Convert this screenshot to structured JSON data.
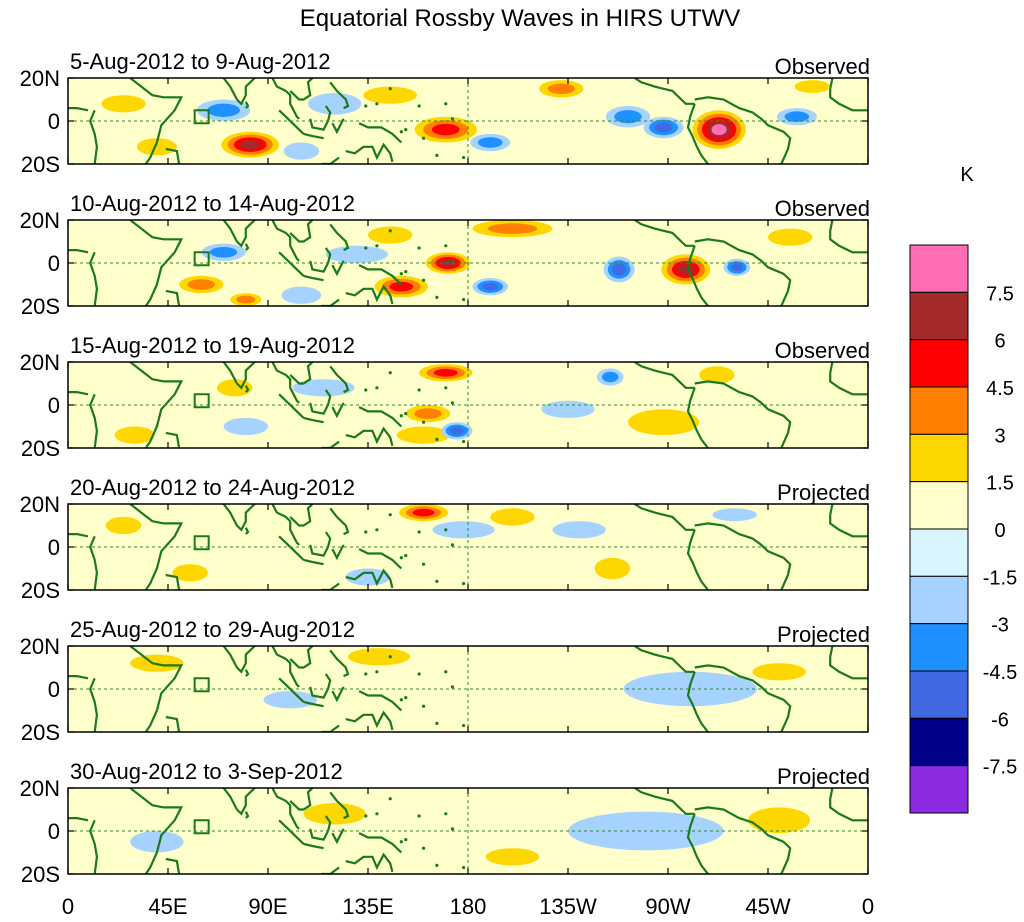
{
  "chart_data": {
    "type": "heatmap",
    "title": "Equatorial Rossby Waves in HIRS UTWV",
    "units": "K",
    "x_tick_labels": [
      "0",
      "45E",
      "90E",
      "135E",
      "180",
      "135W",
      "90W",
      "45W",
      "0"
    ],
    "y_tick_labels": [
      "20N",
      "0",
      "20S"
    ],
    "xlim": [
      0,
      360
    ],
    "ylim": [
      -20,
      20
    ],
    "colorbar": {
      "labels": [
        "7.5",
        "6",
        "4.5",
        "3",
        "1.5",
        "0",
        "-1.5",
        "-3",
        "-4.5",
        "-6",
        "-7.5"
      ],
      "colors": [
        "#ff6eb4",
        "#a52a2a",
        "#ff0000",
        "#ff7f00",
        "#ffd700",
        "#ffffcc",
        "#d9f5ff",
        "#a6d2ff",
        "#1e90ff",
        "#4169e1",
        "#00008b",
        "#8a2be2"
      ]
    },
    "panels": [
      {
        "period": "5-Aug-2012 to 9-Aug-2012",
        "status": "Observed",
        "anomalies": [
          {
            "lon": 82,
            "lat": -11,
            "value": 6,
            "rlon": 13,
            "rlat": 6
          },
          {
            "lon": 170,
            "lat": -4,
            "value": 4.5,
            "rlon": 14,
            "rlat": 6
          },
          {
            "lon": 293,
            "lat": -4,
            "value": 7.5,
            "rlon": 12,
            "rlat": 9
          },
          {
            "lon": 222,
            "lat": 15,
            "value": 3,
            "rlon": 10,
            "rlat": 4
          },
          {
            "lon": 335,
            "lat": 16,
            "value": 1.5,
            "rlon": 8,
            "rlat": 3
          },
          {
            "lon": 70,
            "lat": 5,
            "value": -3,
            "rlon": 12,
            "rlat": 5
          },
          {
            "lon": 268,
            "lat": -3,
            "value": -4.5,
            "rlon": 9,
            "rlat": 5
          },
          {
            "lon": 252,
            "lat": 2,
            "value": -3,
            "rlon": 10,
            "rlat": 5
          },
          {
            "lon": 120,
            "lat": 8,
            "value": -1.5,
            "rlon": 12,
            "rlat": 5
          },
          {
            "lon": 190,
            "lat": -10,
            "value": -3,
            "rlon": 9,
            "rlat": 4
          },
          {
            "lon": 328,
            "lat": 2,
            "value": -3,
            "rlon": 9,
            "rlat": 4
          },
          {
            "lon": 25,
            "lat": 8,
            "value": 1.5,
            "rlon": 10,
            "rlat": 4
          },
          {
            "lon": 40,
            "lat": -12,
            "value": 1.5,
            "rlon": 9,
            "rlat": 4
          },
          {
            "lon": 145,
            "lat": 12,
            "value": 1.5,
            "rlon": 12,
            "rlat": 4
          },
          {
            "lon": 105,
            "lat": -14,
            "value": -1.5,
            "rlon": 8,
            "rlat": 4
          }
        ]
      },
      {
        "period": "10-Aug-2012 to 14-Aug-2012",
        "status": "Observed",
        "anomalies": [
          {
            "lon": 171,
            "lat": 0,
            "value": 6,
            "rlon": 10,
            "rlat": 5
          },
          {
            "lon": 150,
            "lat": -11,
            "value": 4.5,
            "rlon": 12,
            "rlat": 5
          },
          {
            "lon": 278,
            "lat": -3,
            "value": 6,
            "rlon": 11,
            "rlat": 7
          },
          {
            "lon": 200,
            "lat": 16,
            "value": 3,
            "rlon": 18,
            "rlat": 4
          },
          {
            "lon": 60,
            "lat": -10,
            "value": 3,
            "rlon": 10,
            "rlat": 4
          },
          {
            "lon": 80,
            "lat": -17,
            "value": 3,
            "rlon": 7,
            "rlat": 3
          },
          {
            "lon": 190,
            "lat": -11,
            "value": -4.5,
            "rlon": 8,
            "rlat": 4
          },
          {
            "lon": 248,
            "lat": -3,
            "value": -4.5,
            "rlon": 7,
            "rlat": 6
          },
          {
            "lon": 301,
            "lat": -2,
            "value": -4.5,
            "rlon": 6,
            "rlat": 4
          },
          {
            "lon": 130,
            "lat": 4,
            "value": -1.5,
            "rlon": 14,
            "rlat": 4
          },
          {
            "lon": 70,
            "lat": 5,
            "value": -3,
            "rlon": 10,
            "rlat": 4
          },
          {
            "lon": 145,
            "lat": 13,
            "value": 1.5,
            "rlon": 10,
            "rlat": 4
          },
          {
            "lon": 325,
            "lat": 12,
            "value": 1.5,
            "rlon": 10,
            "rlat": 4
          },
          {
            "lon": 105,
            "lat": -15,
            "value": -1.5,
            "rlon": 9,
            "rlat": 4
          }
        ]
      },
      {
        "period": "15-Aug-2012 to 19-Aug-2012",
        "status": "Observed",
        "anomalies": [
          {
            "lon": 170,
            "lat": 15,
            "value": 4.5,
            "rlon": 12,
            "rlat": 4
          },
          {
            "lon": 162,
            "lat": -4,
            "value": 3,
            "rlon": 10,
            "rlat": 4
          },
          {
            "lon": 175,
            "lat": -12,
            "value": -4.5,
            "rlon": 7,
            "rlat": 4
          },
          {
            "lon": 244,
            "lat": 13,
            "value": -3,
            "rlon": 6,
            "rlat": 4
          },
          {
            "lon": 268,
            "lat": -8,
            "value": 1.5,
            "rlon": 16,
            "rlat": 6
          },
          {
            "lon": 292,
            "lat": 14,
            "value": 1.5,
            "rlon": 8,
            "rlat": 4
          },
          {
            "lon": 75,
            "lat": 8,
            "value": 1.5,
            "rlon": 8,
            "rlat": 4
          },
          {
            "lon": 160,
            "lat": -14,
            "value": 1.5,
            "rlon": 12,
            "rlat": 4
          },
          {
            "lon": 115,
            "lat": 8,
            "value": -1.5,
            "rlon": 14,
            "rlat": 4
          },
          {
            "lon": 80,
            "lat": -10,
            "value": -1.5,
            "rlon": 10,
            "rlat": 4
          },
          {
            "lon": 225,
            "lat": -2,
            "value": -1.5,
            "rlon": 12,
            "rlat": 4
          },
          {
            "lon": 30,
            "lat": -14,
            "value": 1.5,
            "rlon": 9,
            "rlat": 4
          }
        ]
      },
      {
        "period": "20-Aug-2012 to 24-Aug-2012",
        "status": "Projected",
        "anomalies": [
          {
            "lon": 160,
            "lat": 16,
            "value": 4.5,
            "rlon": 11,
            "rlat": 4
          },
          {
            "lon": 200,
            "lat": 14,
            "value": 1.5,
            "rlon": 10,
            "rlat": 4
          },
          {
            "lon": 178,
            "lat": 8,
            "value": -1.5,
            "rlon": 14,
            "rlat": 4
          },
          {
            "lon": 245,
            "lat": -10,
            "value": 1.5,
            "rlon": 8,
            "rlat": 5
          },
          {
            "lon": 135,
            "lat": -14,
            "value": -1.5,
            "rlon": 10,
            "rlat": 4
          },
          {
            "lon": 230,
            "lat": 8,
            "value": -1.5,
            "rlon": 12,
            "rlat": 4
          },
          {
            "lon": 55,
            "lat": -12,
            "value": 1.5,
            "rlon": 8,
            "rlat": 4
          },
          {
            "lon": 25,
            "lat": 10,
            "value": 1.5,
            "rlon": 8,
            "rlat": 4
          },
          {
            "lon": 300,
            "lat": 15,
            "value": -1.5,
            "rlon": 10,
            "rlat": 3
          }
        ]
      },
      {
        "period": "25-Aug-2012 to 29-Aug-2012",
        "status": "Projected",
        "anomalies": [
          {
            "lon": 140,
            "lat": 15,
            "value": 1.5,
            "rlon": 14,
            "rlat": 4
          },
          {
            "lon": 100,
            "lat": -5,
            "value": -1.5,
            "rlon": 12,
            "rlat": 4
          },
          {
            "lon": 280,
            "lat": 0,
            "value": -1.5,
            "rlon": 30,
            "rlat": 8
          },
          {
            "lon": 320,
            "lat": 8,
            "value": 1.5,
            "rlon": 12,
            "rlat": 4
          },
          {
            "lon": 40,
            "lat": 12,
            "value": 1.5,
            "rlon": 12,
            "rlat": 4
          }
        ]
      },
      {
        "period": "30-Aug-2012 to 3-Sep-2012",
        "status": "Projected",
        "anomalies": [
          {
            "lon": 120,
            "lat": 8,
            "value": 1.5,
            "rlon": 14,
            "rlat": 5
          },
          {
            "lon": 260,
            "lat": 0,
            "value": -1.5,
            "rlon": 35,
            "rlat": 9
          },
          {
            "lon": 40,
            "lat": -5,
            "value": -1.5,
            "rlon": 12,
            "rlat": 5
          },
          {
            "lon": 320,
            "lat": 5,
            "value": 1.5,
            "rlon": 14,
            "rlat": 6
          },
          {
            "lon": 200,
            "lat": -12,
            "value": 1.5,
            "rlon": 12,
            "rlat": 4
          }
        ]
      }
    ]
  }
}
